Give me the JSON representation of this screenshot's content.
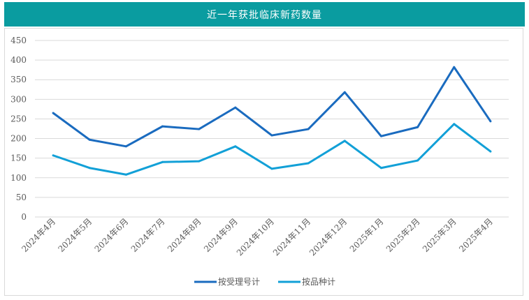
{
  "chart_data": {
    "type": "line",
    "title": "近一年获批临床新药数量",
    "xlabel": "",
    "ylabel": "",
    "ylim": [
      0,
      450
    ],
    "yticks": [
      0,
      50,
      100,
      150,
      200,
      250,
      300,
      350,
      400,
      450
    ],
    "grid": true,
    "legend_position": "bottom",
    "categories": [
      "2024年4月",
      "2024年5月",
      "2024年6月",
      "2024年7月",
      "2024年8月",
      "2024年9月",
      "2024年10月",
      "2024年11月",
      "2024年12月",
      "2025年1月",
      "2025年2月",
      "2025年3月",
      "2025年4月"
    ],
    "series": [
      {
        "name": "按受理号计",
        "color": "#1a6bbf",
        "values": [
          265,
          197,
          180,
          231,
          224,
          279,
          208,
          224,
          318,
          206,
          229,
          382,
          244
        ]
      },
      {
        "name": "按品种计",
        "color": "#12a0d7",
        "values": [
          157,
          125,
          108,
          140,
          142,
          180,
          123,
          137,
          194,
          125,
          144,
          237,
          167
        ]
      }
    ]
  },
  "colors": {
    "header": "#0a9ca0",
    "grid": "#d9d9d9"
  }
}
